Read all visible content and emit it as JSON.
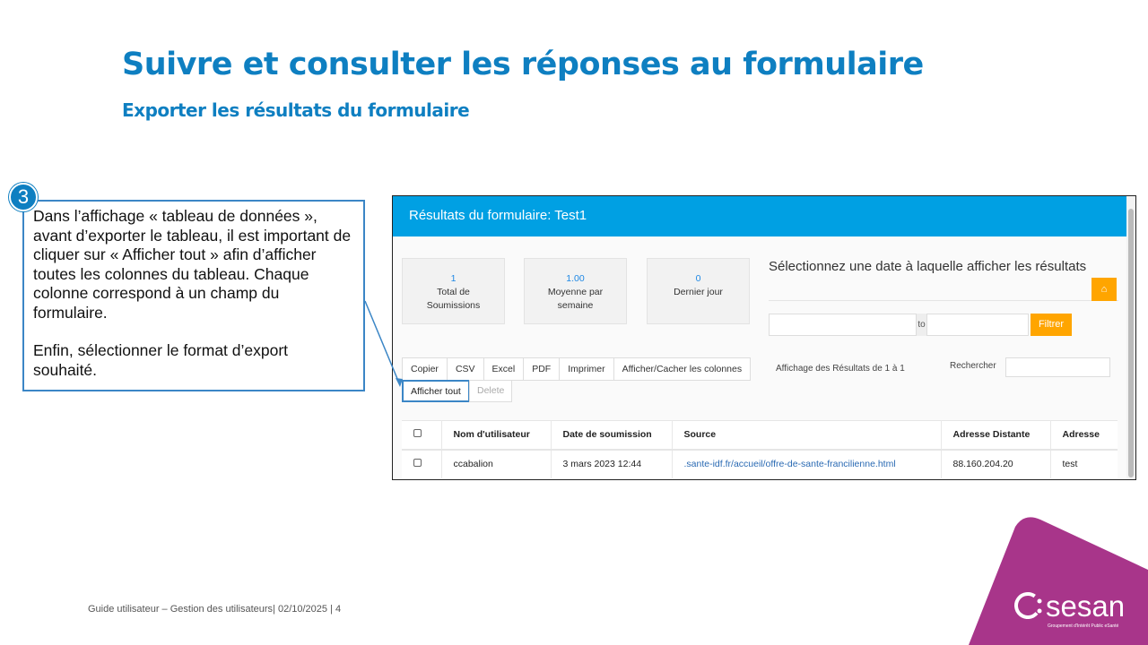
{
  "slide": {
    "title": "Suivre et consulter les réponses au formulaire",
    "subtitle": "Exporter les résultats du formulaire",
    "step": "3",
    "callout": [
      "Dans l’affichage « tableau de données », avant d’exporter le tableau, il est important de cliquer sur « Afficher tout » afin d’afficher toutes les colonnes du tableau. Chaque colonne correspond à un champ du formulaire.",
      "Enfin, sélectionner le format d’export souhaité."
    ],
    "footer": "Guide utilisateur – Gestion des utilisateurs| 02/10/2025  |  4",
    "logo": "sesan",
    "logo_tagline": "Groupement d'Intérêt Public eSanté",
    "accent": "#0e7fc1",
    "logo_color": "#a8358a"
  },
  "app": {
    "header": "Résultats du formulaire: Test1",
    "stats": [
      {
        "value": "1",
        "label": "Total de Soumissions"
      },
      {
        "value": "1.00",
        "label": "Moyenne par semaine"
      },
      {
        "value": "0",
        "label": "Dernier jour"
      }
    ],
    "date_title": "Sélectionnez une date à laquelle afficher les résultats",
    "to": "to",
    "filter": "Filtrer",
    "buttons": [
      "Copier",
      "CSV",
      "Excel",
      "PDF",
      "Imprimer",
      "Afficher/Cacher les colonnes"
    ],
    "show_all": "Afficher tout",
    "delete": "Delete",
    "info": "Affichage des Résultats de 1 à 1",
    "search_label": "Rechercher",
    "columns": [
      "Nom d'utilisateur",
      "Date de soumission",
      "Source",
      "Adresse Distante",
      "Adresse"
    ],
    "rows": [
      [
        "ccabalion",
        "3 mars 2023 12:44",
        ".sante-idf.fr/accueil/offre-de-sante-francilienne.html",
        "88.160.204.20",
        "test"
      ]
    ],
    "header_color": "#00a0e3",
    "button_color": "#ffa500"
  }
}
